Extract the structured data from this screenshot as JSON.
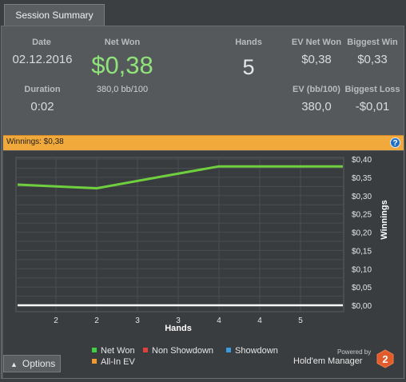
{
  "tabs": [
    {
      "label": "Session Summary"
    }
  ],
  "summary": {
    "date_label": "Date",
    "date_value": "02.12.2016",
    "duration_label": "Duration",
    "duration_value": "0:02",
    "net_won_label": "Net Won",
    "net_won_value": "$0,38",
    "net_won_sub": "380,0 bb/100",
    "hands_label": "Hands",
    "hands_value": "5",
    "ev_net_won_label": "EV Net Won",
    "ev_net_won_value": "$0,38",
    "biggest_win_label": "Biggest Win",
    "biggest_win_value": "$0,33",
    "ev_bb_label": "EV (bb/100)",
    "ev_bb_value": "380,0",
    "biggest_loss_label": "Biggest Loss",
    "biggest_loss_value": "-$0,01"
  },
  "banner": {
    "text": "Winnings: $0,38",
    "help_icon": "question-icon"
  },
  "chart_data": {
    "type": "line",
    "xlabel": "Hands",
    "ylabel": "Winnings",
    "x_ticks": [
      "2",
      "2",
      "3",
      "3",
      "4",
      "4",
      "5"
    ],
    "y_ticks": [
      "$0,40",
      "$0,35",
      "$0,30",
      "$0,25",
      "$0,20",
      "$0,15",
      "$0,10",
      "$0,05",
      "$0,00"
    ],
    "ylim": [
      0,
      0.4
    ],
    "grid": true,
    "series": [
      {
        "name": "Net Won",
        "color": "#6fcf3f",
        "x": [
          1,
          2,
          3,
          4,
          5
        ],
        "values": [
          0.33,
          0.32,
          0.35,
          0.38,
          0.38
        ]
      },
      {
        "name": "Non Showdown",
        "color": "#ffffff",
        "x": [
          1,
          2,
          3,
          4,
          5
        ],
        "values": [
          0,
          0,
          0,
          0,
          0
        ]
      }
    ]
  },
  "legend": [
    {
      "label": "Net Won",
      "color": "#3fd13f"
    },
    {
      "label": "Non Showdown",
      "color": "#e0413a"
    },
    {
      "label": "Showdown",
      "color": "#3b9be0"
    },
    {
      "label": "All-In EV",
      "color": "#f29a2e"
    }
  ],
  "footer": {
    "options_label": "Options",
    "powered_by": "Powered by",
    "brand": "Hold'em Manager",
    "brand_badge": "2"
  }
}
